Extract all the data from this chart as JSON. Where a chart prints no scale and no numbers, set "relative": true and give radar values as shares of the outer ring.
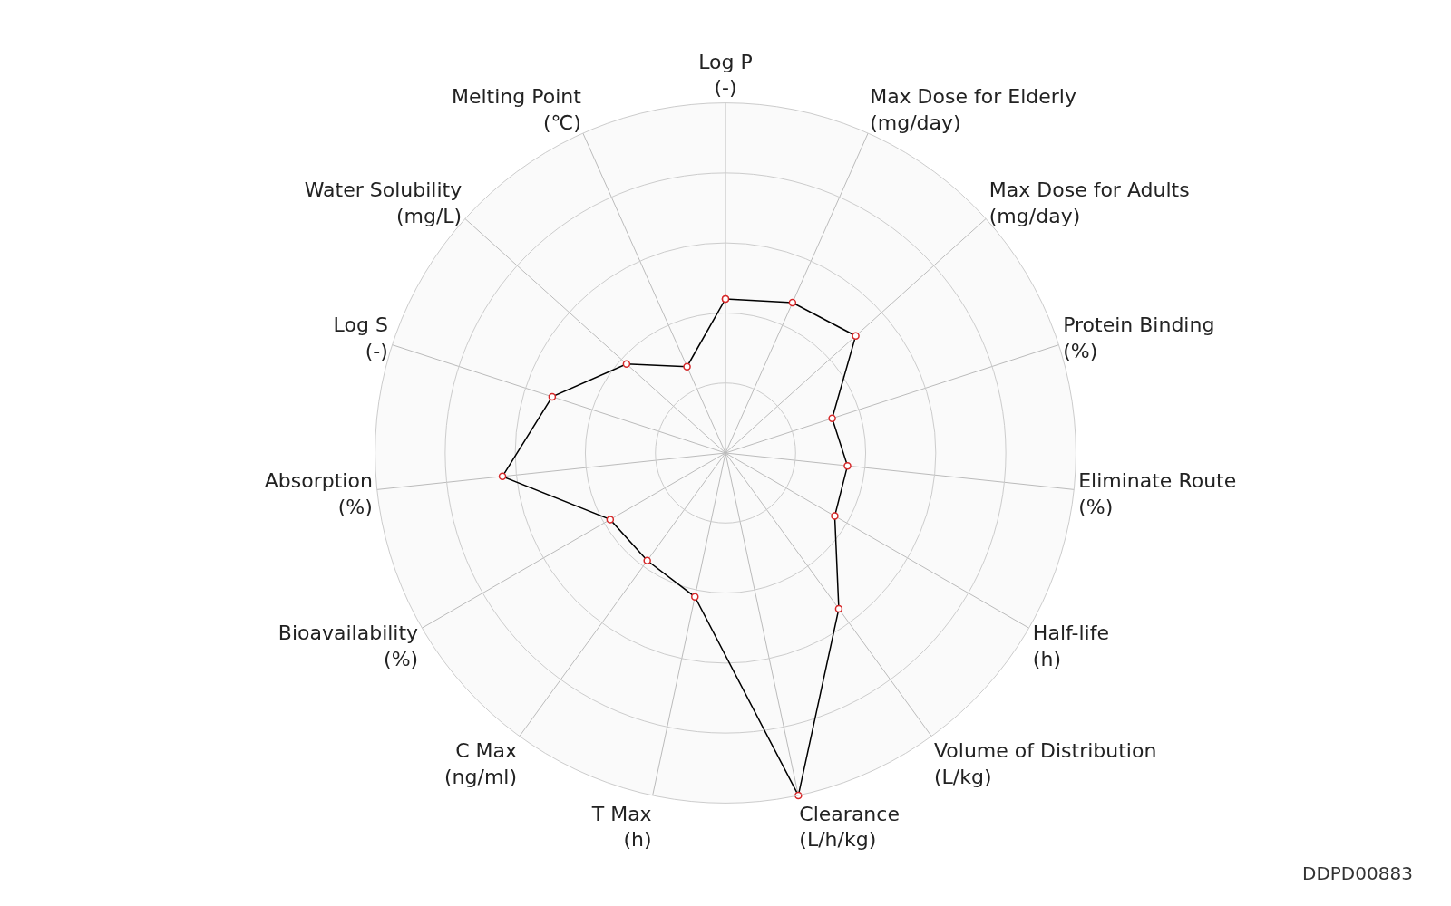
{
  "chart_data": {
    "type": "radar",
    "relative": true,
    "grid": true,
    "marker": "circle",
    "line_style": "solid",
    "categories": [
      "Log P\n(-)",
      "Max Dose for Elderly\n(mg/day)",
      "Max Dose for Adults\n(mg/day)",
      "Protein Binding\n(%)",
      "Eliminate Route\n(%)",
      "Half-life\n(h)",
      "Volume of Distribution\n(L/kg)",
      "Clearance\n(L/h/kg)",
      "T Max\n(h)",
      "C Max\n(ng/ml)",
      "Bioavailability\n(%)",
      "Absorption\n(%)",
      "Log S\n(-)",
      "Water Solubility\n(mg/L)",
      "Melting Point\n(℃)"
    ],
    "series": [
      {
        "color": "#000000",
        "values": [
          0.44,
          0.47,
          0.5,
          0.32,
          0.35,
          0.36,
          0.55,
          1.0,
          0.42,
          0.38,
          0.38,
          0.64,
          0.52,
          0.38,
          0.27
        ]
      }
    ],
    "annotations": [
      "DDPD00883"
    ]
  }
}
